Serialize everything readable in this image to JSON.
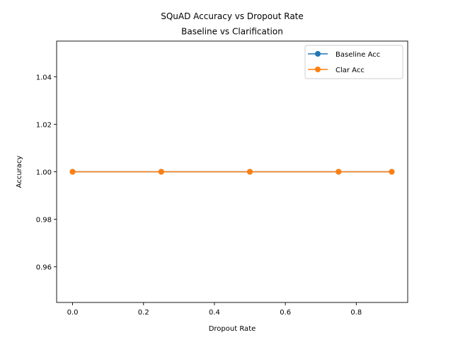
{
  "chart_data": {
    "type": "line",
    "title": "SQuAD Accuracy vs Dropout Rate",
    "subtitle": "Baseline vs Clarification",
    "xlabel": "Dropout Rate",
    "ylabel": "Accuracy",
    "xlim": [
      -0.045,
      0.945
    ],
    "ylim": [
      0.945,
      1.055
    ],
    "x_ticks": [
      0.0,
      0.2,
      0.4,
      0.6,
      0.8
    ],
    "x_tick_labels": [
      "0.0",
      "0.2",
      "0.4",
      "0.6",
      "0.8"
    ],
    "y_ticks": [
      0.96,
      0.98,
      1.0,
      1.02,
      1.04
    ],
    "y_tick_labels": [
      "0.96",
      "0.98",
      "1.00",
      "1.02",
      "1.04"
    ],
    "grid": false,
    "legend_position": "top-right",
    "x": [
      0.0,
      0.25,
      0.5,
      0.75,
      0.9
    ],
    "series": [
      {
        "name": "Baseline Acc",
        "values": [
          1.0,
          1.0,
          1.0,
          1.0,
          1.0
        ],
        "color": "#1f77b4",
        "marker": "circle"
      },
      {
        "name": "Clar Acc",
        "values": [
          1.0,
          1.0,
          1.0,
          1.0,
          1.0
        ],
        "color": "#ff7f0e",
        "marker": "circle"
      }
    ]
  }
}
